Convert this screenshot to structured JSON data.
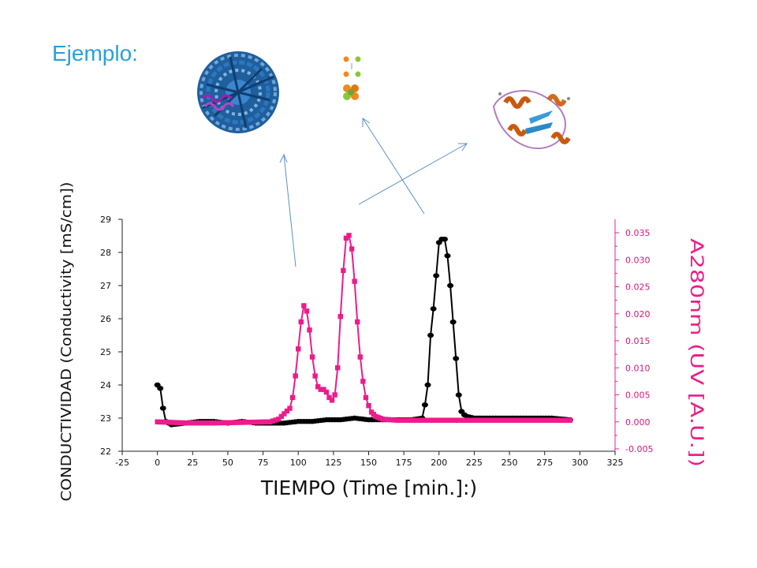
{
  "slide": {
    "title": "Ejemplo:"
  },
  "icons": [
    "virus-capsid-icon",
    "small-molecules-icon",
    "protein-structure-icon"
  ],
  "colors": {
    "title": "#2aa0d8",
    "conductivity": "#000000",
    "uv": "#ec1c8c",
    "arrow": "#5b8fc7"
  },
  "chart_data": {
    "type": "line",
    "title": "",
    "xlabel": "TIEMPO (Time [min.]:)",
    "ylabel_left": "CONDUCTIVIDAD (Conductivity [mS/cm])",
    "ylabel_right": "A280nm (UV [A.U.])",
    "xlim": [
      -25,
      325
    ],
    "ylim_left": [
      22,
      29
    ],
    "ylim_right": [
      -0.005,
      0.037
    ],
    "x_ticks": [
      "-25",
      "0",
      "25",
      "50",
      "75",
      "100",
      "125",
      "150",
      "175",
      "200",
      "225",
      "250",
      "275",
      "300",
      "325"
    ],
    "y_left_ticks": [
      "22",
      "23",
      "24",
      "25",
      "26",
      "27",
      "28",
      "29"
    ],
    "y_right_ticks": [
      "-0.005",
      "0.000",
      "0.005",
      "0.010",
      "0.015",
      "0.020",
      "0.025",
      "0.030",
      "0.035"
    ],
    "grid": false,
    "series": [
      {
        "axis": "left",
        "marker": "circle",
        "x": [
          0,
          2,
          4,
          6,
          10,
          20,
          30,
          40,
          50,
          60,
          70,
          80,
          90,
          100,
          110,
          120,
          130,
          140,
          150,
          160,
          170,
          180,
          188,
          190,
          192,
          194,
          196,
          198,
          200,
          202,
          204,
          206,
          208,
          210,
          212,
          214,
          216,
          218,
          220,
          225,
          230,
          240,
          250,
          260,
          270,
          280,
          293
        ],
        "y": [
          24.0,
          23.9,
          23.3,
          22.9,
          22.8,
          22.85,
          22.9,
          22.9,
          22.85,
          22.9,
          22.85,
          22.85,
          22.85,
          22.9,
          22.9,
          22.95,
          22.95,
          23.0,
          22.95,
          22.95,
          22.95,
          22.95,
          23.0,
          23.4,
          24.0,
          25.5,
          26.3,
          27.3,
          28.3,
          28.4,
          28.4,
          27.9,
          27.0,
          25.9,
          24.8,
          23.7,
          23.2,
          23.1,
          23.05,
          23.0,
          23.0,
          23.0,
          23.0,
          23.0,
          23.0,
          23.0,
          22.95
        ]
      },
      {
        "axis": "right",
        "marker": "square",
        "x": [
          0,
          20,
          40,
          60,
          80,
          86,
          90,
          94,
          96,
          98,
          100,
          102,
          104,
          106,
          108,
          110,
          112,
          114,
          116,
          118,
          120,
          122,
          124,
          126,
          128,
          130,
          132,
          134,
          136,
          138,
          140,
          142,
          144,
          146,
          148,
          150,
          152,
          155,
          160,
          170,
          180,
          200,
          220,
          240,
          260,
          280,
          293
        ],
        "y": [
          0.0,
          -0.0002,
          -0.0002,
          -0.0001,
          0.0,
          0.0005,
          0.0015,
          0.0025,
          0.0045,
          0.0085,
          0.0135,
          0.0185,
          0.0215,
          0.0205,
          0.017,
          0.012,
          0.0085,
          0.0065,
          0.006,
          0.006,
          0.0055,
          0.0045,
          0.004,
          0.005,
          0.01,
          0.0195,
          0.028,
          0.034,
          0.0345,
          0.032,
          0.026,
          0.0185,
          0.012,
          0.0075,
          0.0045,
          0.003,
          0.0018,
          0.001,
          0.0005,
          0.0003,
          0.0003,
          0.0003,
          0.0003,
          0.0003,
          0.0003,
          0.0003,
          0.0003
        ]
      }
    ]
  }
}
